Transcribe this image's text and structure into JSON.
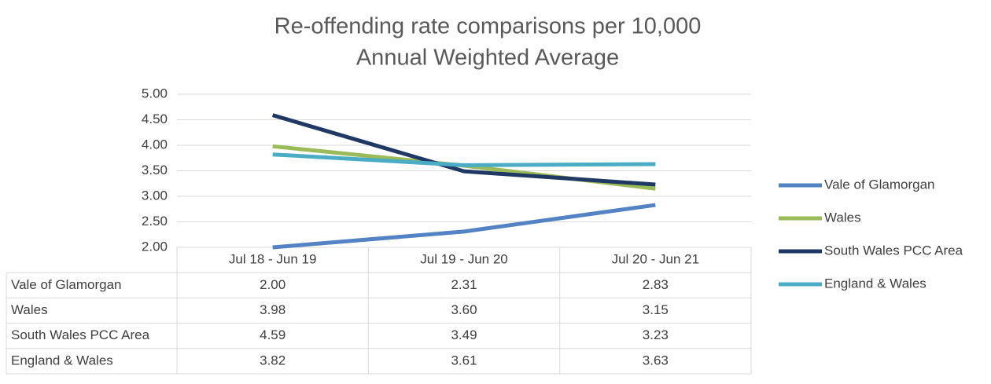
{
  "chart_data": {
    "type": "line",
    "title": "Re-offending rate comparisons per 10,000",
    "subtitle": "Annual Weighted Average",
    "categories": [
      "Jul 18 - Jun 19",
      "Jul 19 - Jun 20",
      "Jul 20 - Jun 21"
    ],
    "series": [
      {
        "name": "Vale of Glamorgan",
        "color": "#5383c4",
        "values": [
          2.0,
          2.31,
          2.83
        ],
        "value_labels": [
          "2.00",
          "2.31",
          "2.83"
        ]
      },
      {
        "name": "Wales",
        "color": "#9bbb59",
        "values": [
          3.98,
          3.6,
          3.15
        ],
        "value_labels": [
          "3.98",
          "3.60",
          "3.15"
        ]
      },
      {
        "name": "South Wales PCC Area",
        "color": "#1f3864",
        "values": [
          4.59,
          3.49,
          3.23
        ],
        "value_labels": [
          "4.59",
          "3.49",
          "3.23"
        ]
      },
      {
        "name": "England & Wales",
        "color": "#4bacc6",
        "values": [
          3.82,
          3.61,
          3.63
        ],
        "value_labels": [
          "3.82",
          "3.61",
          "3.63"
        ]
      }
    ],
    "ylim": [
      2,
      5
    ],
    "yticks": [
      {
        "value": 2,
        "label": "2.00"
      },
      {
        "value": 2.5,
        "label": "2.50"
      },
      {
        "value": 3,
        "label": "3.00"
      },
      {
        "value": 3.5,
        "label": "3.50"
      },
      {
        "value": 4,
        "label": "4.00"
      },
      {
        "value": 4.5,
        "label": "4.50"
      },
      {
        "value": 5,
        "label": "5.00"
      }
    ],
    "grid": true,
    "legend": "right",
    "data_table": true
  }
}
